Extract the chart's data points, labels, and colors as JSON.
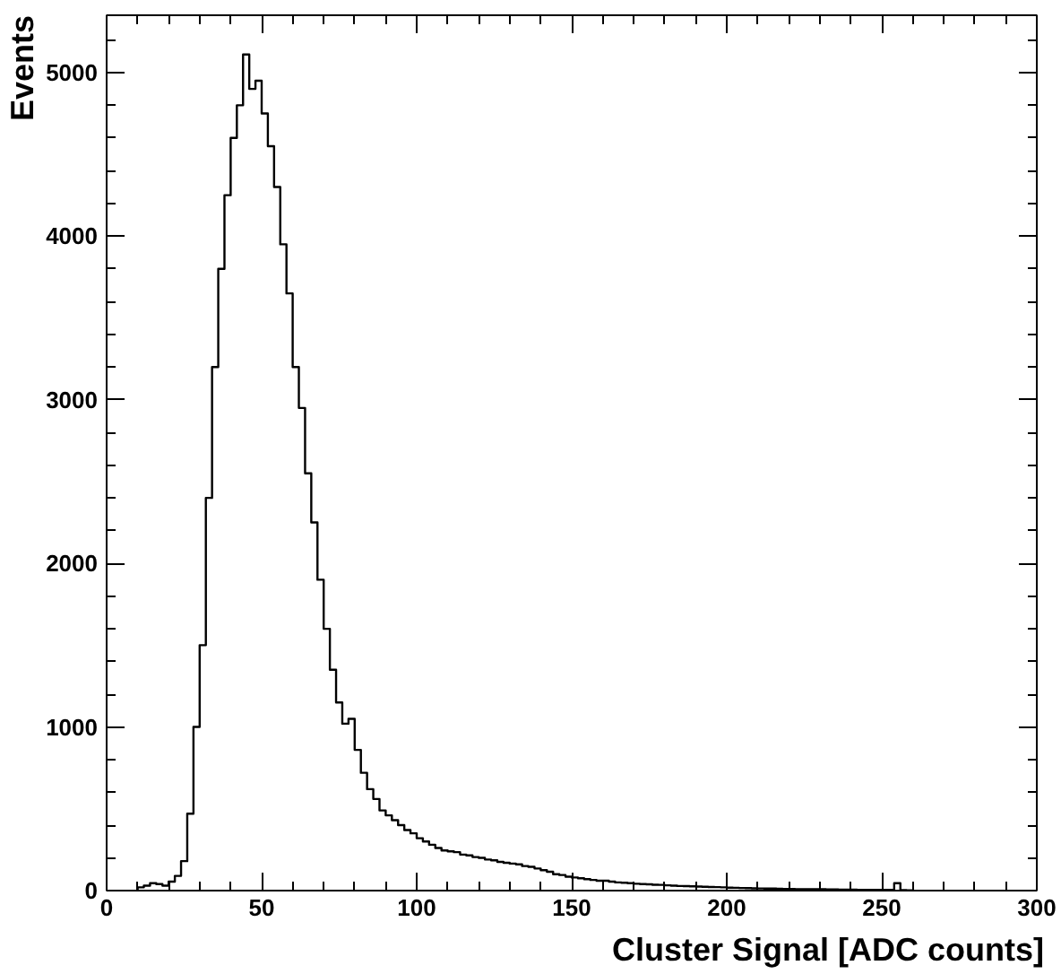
{
  "chart_data": {
    "type": "histogram",
    "xlabel": "Cluster Signal [ADC counts]",
    "ylabel": "Events",
    "color": "#000000",
    "bins": [
      10,
      12,
      14,
      16,
      18,
      20,
      22,
      24,
      26,
      28,
      30,
      32,
      34,
      36,
      38,
      40,
      42,
      44,
      46,
      48,
      50,
      52,
      54,
      56,
      58,
      60,
      62,
      64,
      66,
      68,
      70,
      72,
      74,
      76,
      78,
      80,
      82,
      84,
      86,
      88,
      90,
      92,
      94,
      96,
      98,
      100,
      102,
      104,
      106,
      108,
      110,
      112,
      114,
      116,
      118,
      120,
      122,
      124,
      126,
      128,
      130,
      132,
      134,
      136,
      138,
      140,
      142,
      144,
      146,
      148,
      150,
      152,
      154,
      156,
      158,
      160,
      162,
      164,
      166,
      168,
      170,
      172,
      174,
      176,
      178,
      180,
      182,
      184,
      186,
      188,
      190,
      192,
      194,
      196,
      198,
      200,
      202,
      204,
      206,
      208,
      210,
      212,
      214,
      216,
      218,
      220,
      222,
      224,
      226,
      228,
      230,
      232,
      234,
      236,
      238,
      240,
      242,
      244,
      246,
      248,
      250,
      252,
      254,
      256,
      258,
      260
    ],
    "values": [
      20,
      30,
      45,
      40,
      30,
      55,
      90,
      180,
      470,
      1000,
      1500,
      2400,
      3200,
      3800,
      4250,
      4600,
      4800,
      5110,
      4900,
      4950,
      4750,
      4550,
      4300,
      3950,
      3650,
      3200,
      2950,
      2550,
      2250,
      1900,
      1600,
      1350,
      1150,
      1020,
      1050,
      860,
      720,
      620,
      560,
      490,
      460,
      430,
      400,
      370,
      350,
      320,
      300,
      280,
      260,
      245,
      240,
      235,
      220,
      215,
      205,
      200,
      190,
      185,
      175,
      170,
      165,
      160,
      150,
      145,
      135,
      125,
      115,
      100,
      95,
      85,
      80,
      75,
      70,
      65,
      60,
      60,
      55,
      50,
      48,
      45,
      42,
      40,
      38,
      36,
      35,
      32,
      30,
      28,
      27,
      26,
      25,
      23,
      22,
      21,
      20,
      18,
      17,
      16,
      15,
      14,
      13,
      12,
      12,
      11,
      10,
      10,
      9,
      9,
      8,
      8,
      8,
      7,
      7,
      6,
      6,
      6,
      5,
      5,
      5,
      4,
      4,
      4,
      45,
      3,
      2
    ],
    "xlim": [
      0,
      300
    ],
    "ylim": [
      0,
      5350
    ],
    "xticks": [
      0,
      50,
      100,
      150,
      200,
      250,
      300
    ],
    "yticks": [
      0,
      1000,
      2000,
      3000,
      4000,
      5000
    ]
  }
}
